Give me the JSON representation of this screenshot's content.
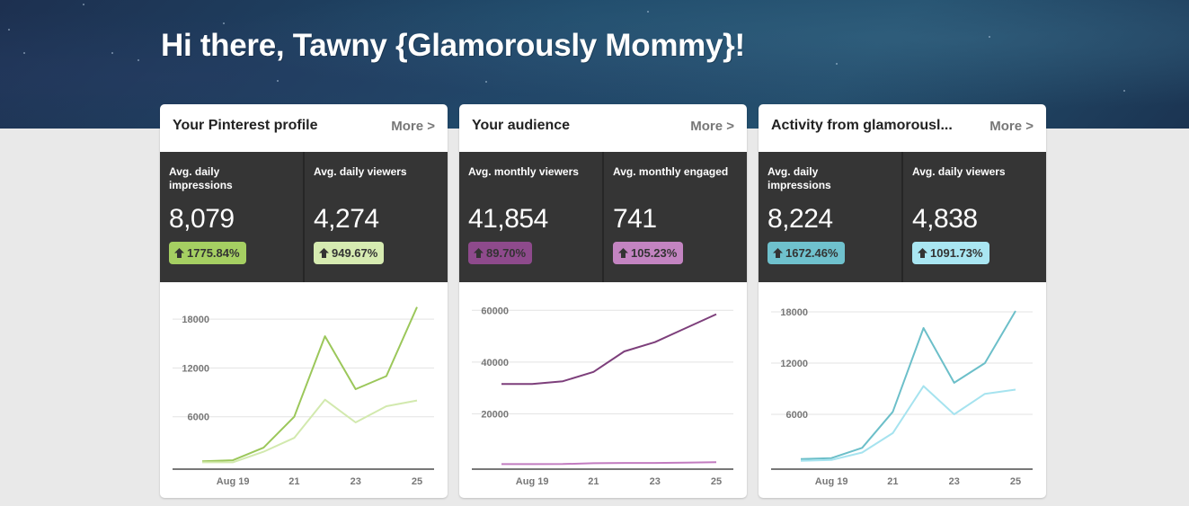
{
  "header": {
    "greeting": "Hi there, Tawny {Glamorously Mommy}!"
  },
  "cards": [
    {
      "title": "Your Pinterest profile",
      "more_label": "More >",
      "stats": [
        {
          "label": "Avg. daily impressions",
          "value": "8,079",
          "change": "1775.84%",
          "badge_color": "#a5cf62"
        },
        {
          "label": "Avg. daily viewers",
          "value": "4,274",
          "change": "949.67%",
          "badge_color": "#d6ebb1"
        }
      ]
    },
    {
      "title": "Your audience",
      "more_label": "More >",
      "stats": [
        {
          "label": "Avg. monthly viewers",
          "value": "41,854",
          "change": "89.70%",
          "badge_color": "#8e4a8c"
        },
        {
          "label": "Avg. monthly engaged",
          "value": "741",
          "change": "105.23%",
          "badge_color": "#c384c1"
        }
      ]
    },
    {
      "title": "Activity from glamorousl...",
      "more_label": "More >",
      "stats": [
        {
          "label": "Avg. daily impressions",
          "value": "8,224",
          "change": "1672.46%",
          "badge_color": "#6fc1cd"
        },
        {
          "label": "Avg. daily viewers",
          "value": "4,838",
          "change": "1091.73%",
          "badge_color": "#a9e6f2"
        }
      ]
    }
  ],
  "chart_data": [
    {
      "type": "line",
      "title": "Your Pinterest profile",
      "x": [
        "Aug 18",
        "Aug 19",
        "Aug 20",
        "Aug 21",
        "Aug 22",
        "Aug 23",
        "Aug 24",
        "Aug 25"
      ],
      "x_tick_labels": [
        "Aug 19",
        "21",
        "23",
        "25"
      ],
      "x_tick_index": [
        1,
        3,
        5,
        7
      ],
      "y_ticks": [
        6000,
        12000,
        18000
      ],
      "ylim": [
        0,
        21000
      ],
      "grid": true,
      "series": [
        {
          "name": "Avg. daily impressions",
          "color": "#9bc75a",
          "values": [
            530,
            650,
            2200,
            6000,
            15900,
            9400,
            11000,
            19500
          ]
        },
        {
          "name": "Avg. daily viewers",
          "color": "#d2e9ae",
          "values": [
            400,
            400,
            1700,
            3400,
            8100,
            5300,
            7300,
            8000
          ]
        }
      ]
    },
    {
      "type": "line",
      "title": "Your audience",
      "x": [
        "Aug 18",
        "Aug 19",
        "Aug 20",
        "Aug 21",
        "Aug 22",
        "Aug 23",
        "Aug 24",
        "Aug 25"
      ],
      "x_tick_labels": [
        "Aug 19",
        "21",
        "23",
        "25"
      ],
      "x_tick_index": [
        1,
        3,
        5,
        7
      ],
      "y_ticks": [
        20000,
        40000,
        60000
      ],
      "ylim": [
        0,
        66000
      ],
      "grid": true,
      "series": [
        {
          "name": "Avg. monthly viewers",
          "color": "#7d3f7b",
          "values": [
            31500,
            31500,
            32600,
            36200,
            44100,
            47700,
            53100,
            58500
          ]
        },
        {
          "name": "Avg. monthly engaged",
          "color": "#c27cc0",
          "values": [
            540,
            560,
            600,
            900,
            1000,
            1000,
            1100,
            1300
          ]
        }
      ]
    },
    {
      "type": "line",
      "title": "Activity from glamorousl...",
      "x": [
        "Aug 18",
        "Aug 19",
        "Aug 20",
        "Aug 21",
        "Aug 22",
        "Aug 23",
        "Aug 24",
        "Aug 25"
      ],
      "x_tick_labels": [
        "Aug 19",
        "21",
        "23",
        "25"
      ],
      "x_tick_index": [
        1,
        3,
        5,
        7
      ],
      "y_ticks": [
        6000,
        12000,
        18000
      ],
      "ylim": [
        0,
        20000
      ],
      "grid": true,
      "series": [
        {
          "name": "Avg. daily impressions",
          "color": "#6cbfc9",
          "values": [
            760,
            870,
            2070,
            6300,
            16100,
            9700,
            12000,
            18100
          ]
        },
        {
          "name": "Avg. daily viewers",
          "color": "#a6e3ef",
          "values": [
            550,
            650,
            1530,
            3800,
            9300,
            6000,
            8400,
            8900
          ]
        }
      ]
    }
  ]
}
